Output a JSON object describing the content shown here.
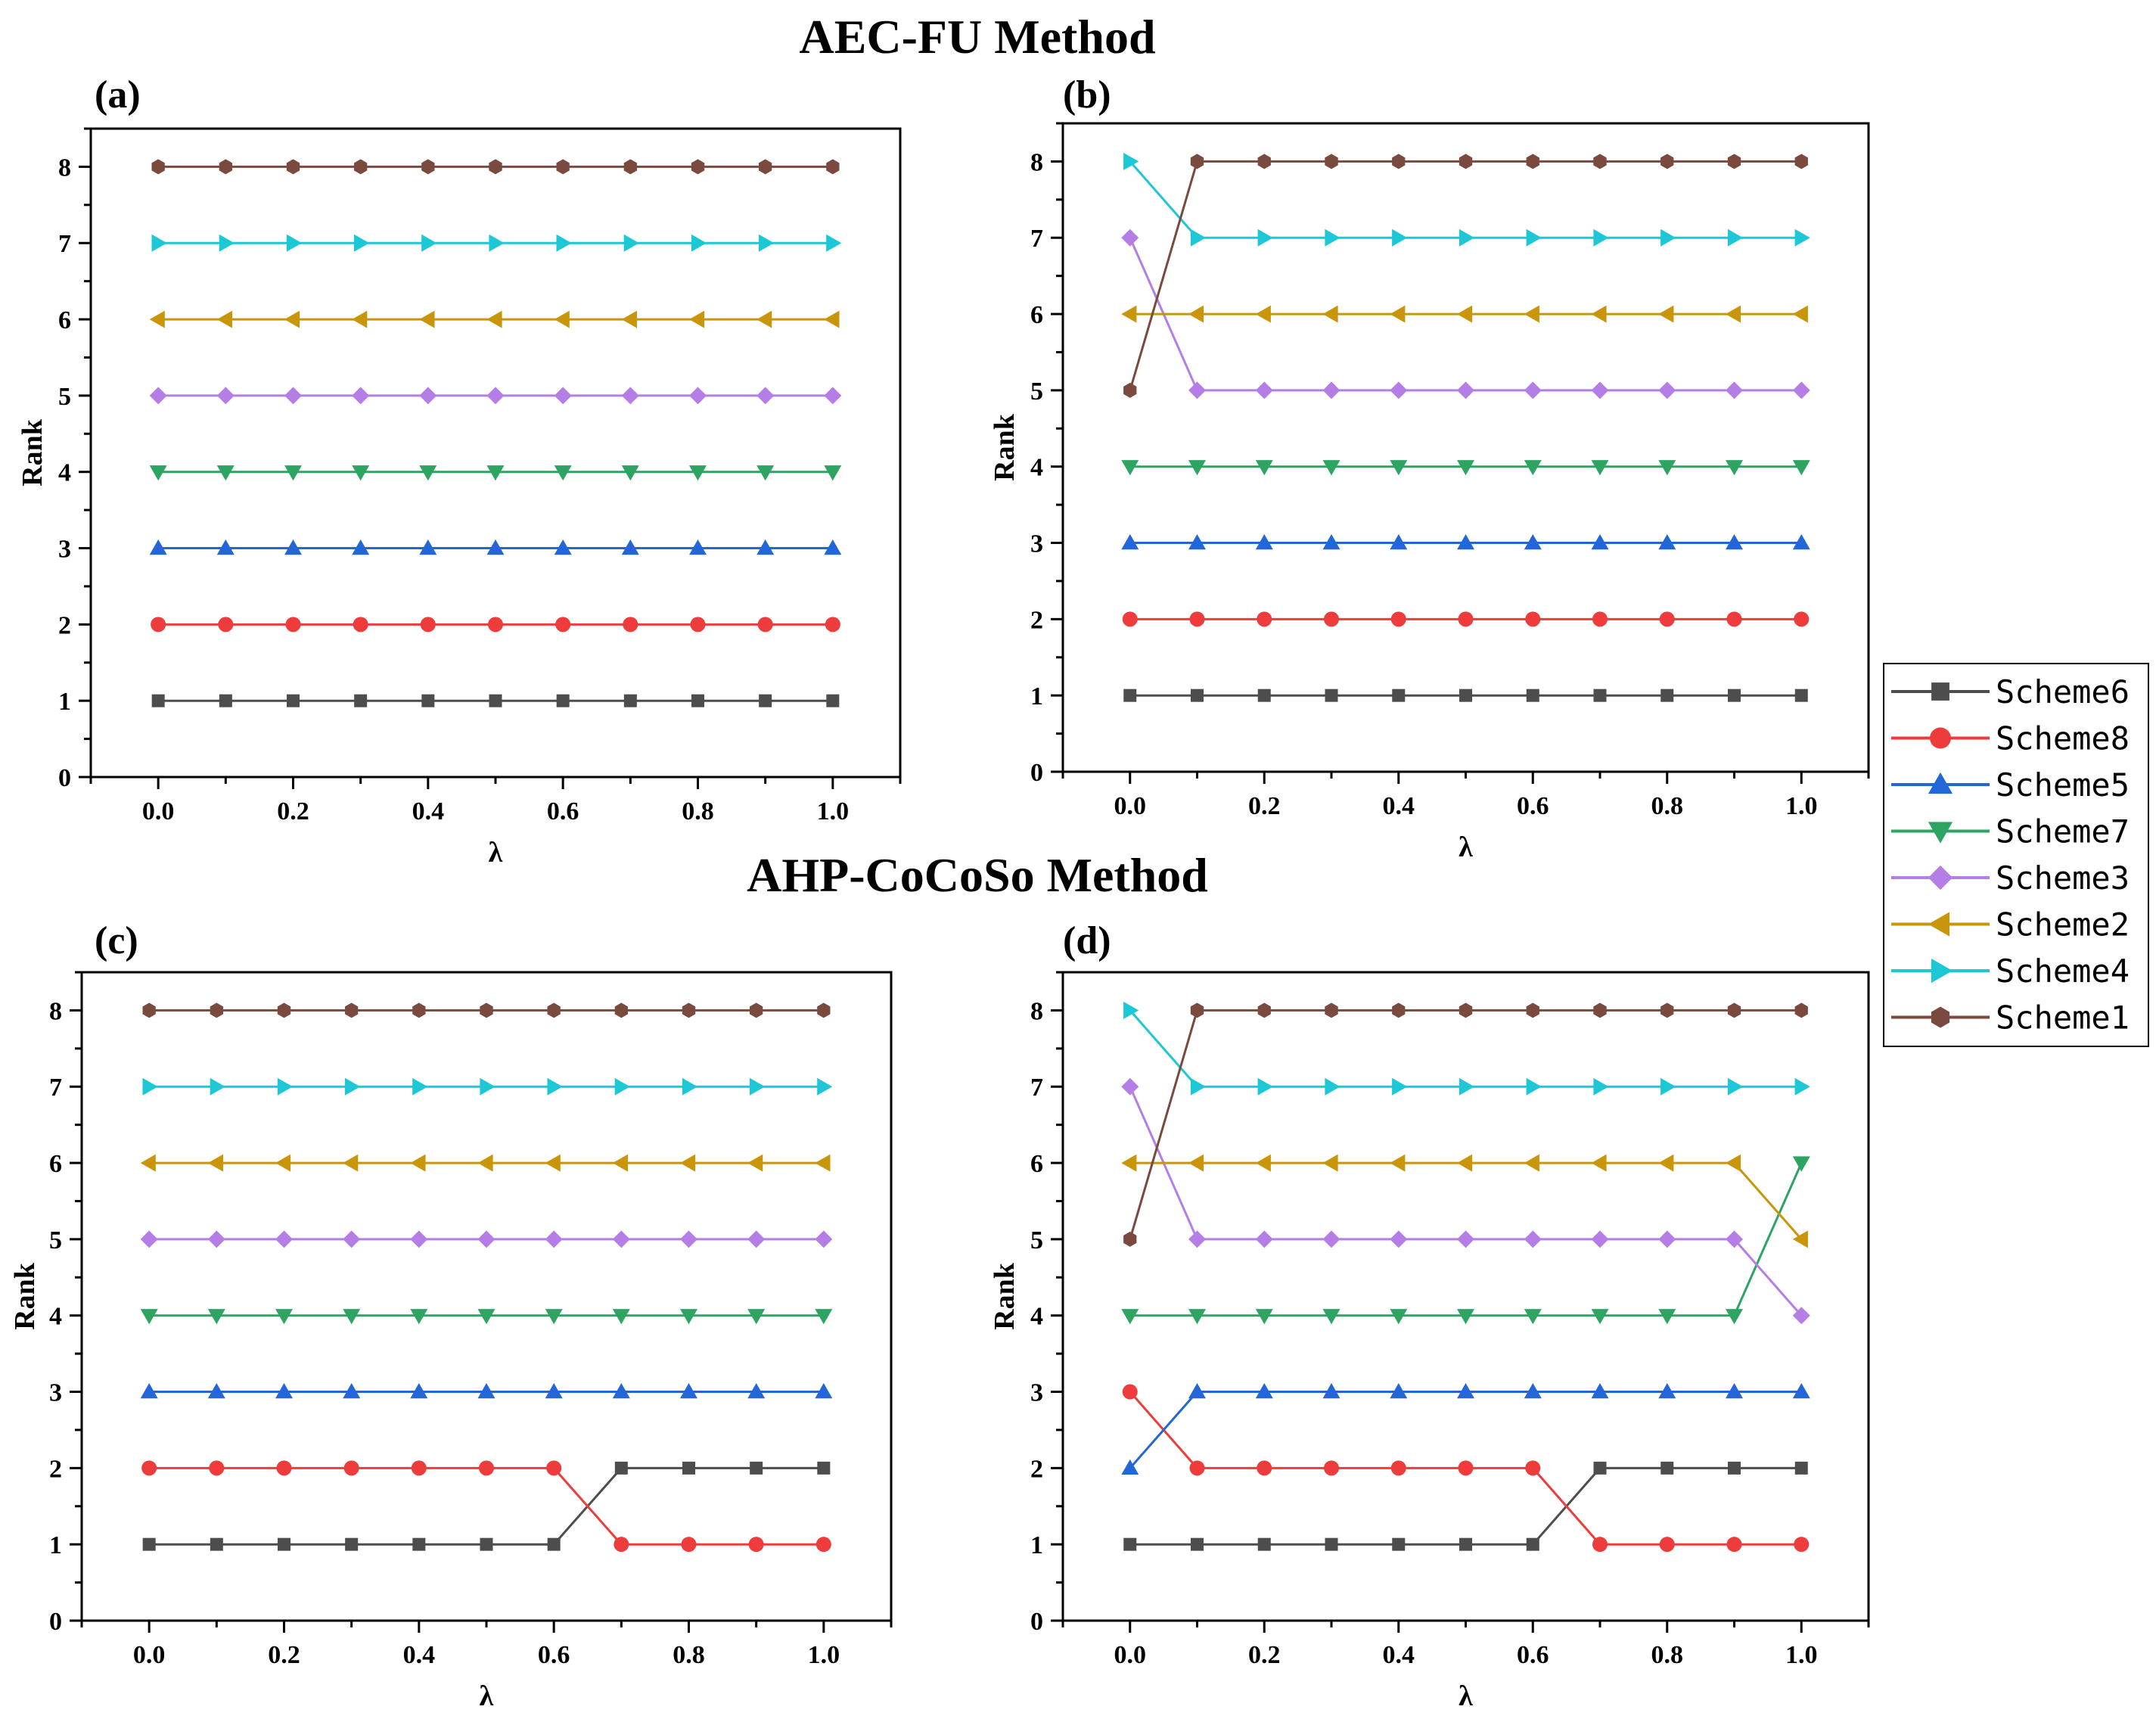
{
  "figure": {
    "top_title": "AEC-FU Method",
    "bottom_title": "AHP-CoCoSo Method"
  },
  "legend": {
    "order": [
      "Scheme6",
      "Scheme8",
      "Scheme5",
      "Scheme7",
      "Scheme3",
      "Scheme2",
      "Scheme4",
      "Scheme1"
    ]
  },
  "series_styles": {
    "Scheme6": {
      "color": "#4d4d4d",
      "marker": "square"
    },
    "Scheme8": {
      "color": "#ee3b3b",
      "marker": "circle"
    },
    "Scheme5": {
      "color": "#2366d8",
      "marker": "triangle-up"
    },
    "Scheme7": {
      "color": "#2ea463",
      "marker": "triangle-down"
    },
    "Scheme3": {
      "color": "#b57ee6",
      "marker": "diamond"
    },
    "Scheme2": {
      "color": "#c9950a",
      "marker": "triangle-left"
    },
    "Scheme4": {
      "color": "#1cc7d6",
      "marker": "triangle-right"
    },
    "Scheme1": {
      "color": "#7b4a3e",
      "marker": "hexagon"
    }
  },
  "chart_data": [
    {
      "type": "line",
      "panel_label": "(a)",
      "xlabel": "λ",
      "ylabel": "Rank",
      "xlim": [
        -0.1,
        1.1
      ],
      "ylim": [
        0,
        8.5
      ],
      "xticks": [
        "0.0",
        "0.2",
        "0.4",
        "0.6",
        "0.8",
        "1.0"
      ],
      "yticks": [
        "0",
        "1",
        "2",
        "3",
        "4",
        "5",
        "6",
        "7",
        "8"
      ],
      "x": [
        0.0,
        0.1,
        0.2,
        0.3,
        0.4,
        0.5,
        0.6,
        0.7,
        0.8,
        0.9,
        1.0
      ],
      "series": [
        {
          "name": "Scheme6",
          "values": [
            1,
            1,
            1,
            1,
            1,
            1,
            1,
            1,
            1,
            1,
            1
          ]
        },
        {
          "name": "Scheme8",
          "values": [
            2,
            2,
            2,
            2,
            2,
            2,
            2,
            2,
            2,
            2,
            2
          ]
        },
        {
          "name": "Scheme5",
          "values": [
            3,
            3,
            3,
            3,
            3,
            3,
            3,
            3,
            3,
            3,
            3
          ]
        },
        {
          "name": "Scheme7",
          "values": [
            4,
            4,
            4,
            4,
            4,
            4,
            4,
            4,
            4,
            4,
            4
          ]
        },
        {
          "name": "Scheme3",
          "values": [
            5,
            5,
            5,
            5,
            5,
            5,
            5,
            5,
            5,
            5,
            5
          ]
        },
        {
          "name": "Scheme2",
          "values": [
            6,
            6,
            6,
            6,
            6,
            6,
            6,
            6,
            6,
            6,
            6
          ]
        },
        {
          "name": "Scheme4",
          "values": [
            7,
            7,
            7,
            7,
            7,
            7,
            7,
            7,
            7,
            7,
            7
          ]
        },
        {
          "name": "Scheme1",
          "values": [
            8,
            8,
            8,
            8,
            8,
            8,
            8,
            8,
            8,
            8,
            8
          ]
        }
      ]
    },
    {
      "type": "line",
      "panel_label": "(b)",
      "xlabel": "λ",
      "ylabel": "Rank",
      "xlim": [
        -0.1,
        1.1
      ],
      "ylim": [
        0,
        8.5
      ],
      "xticks": [
        "0.0",
        "0.2",
        "0.4",
        "0.6",
        "0.8",
        "1.0"
      ],
      "yticks": [
        "0",
        "1",
        "2",
        "3",
        "4",
        "5",
        "6",
        "7",
        "8"
      ],
      "x": [
        0.0,
        0.1,
        0.2,
        0.3,
        0.4,
        0.5,
        0.6,
        0.7,
        0.8,
        0.9,
        1.0
      ],
      "series": [
        {
          "name": "Scheme6",
          "values": [
            1,
            1,
            1,
            1,
            1,
            1,
            1,
            1,
            1,
            1,
            1
          ]
        },
        {
          "name": "Scheme8",
          "values": [
            2,
            2,
            2,
            2,
            2,
            2,
            2,
            2,
            2,
            2,
            2
          ]
        },
        {
          "name": "Scheme5",
          "values": [
            3,
            3,
            3,
            3,
            3,
            3,
            3,
            3,
            3,
            3,
            3
          ]
        },
        {
          "name": "Scheme7",
          "values": [
            4,
            4,
            4,
            4,
            4,
            4,
            4,
            4,
            4,
            4,
            4
          ]
        },
        {
          "name": "Scheme3",
          "values": [
            7,
            5,
            5,
            5,
            5,
            5,
            5,
            5,
            5,
            5,
            5
          ]
        },
        {
          "name": "Scheme2",
          "values": [
            6,
            6,
            6,
            6,
            6,
            6,
            6,
            6,
            6,
            6,
            6
          ]
        },
        {
          "name": "Scheme4",
          "values": [
            8,
            7,
            7,
            7,
            7,
            7,
            7,
            7,
            7,
            7,
            7
          ]
        },
        {
          "name": "Scheme1",
          "values": [
            5,
            8,
            8,
            8,
            8,
            8,
            8,
            8,
            8,
            8,
            8
          ]
        }
      ]
    },
    {
      "type": "line",
      "panel_label": "(c)",
      "xlabel": "λ",
      "ylabel": "Rank",
      "xlim": [
        -0.1,
        1.1
      ],
      "ylim": [
        0,
        8.5
      ],
      "xticks": [
        "0.0",
        "0.2",
        "0.4",
        "0.6",
        "0.8",
        "1.0"
      ],
      "yticks": [
        "0",
        "1",
        "2",
        "3",
        "4",
        "5",
        "6",
        "7",
        "8"
      ],
      "x": [
        0.0,
        0.1,
        0.2,
        0.3,
        0.4,
        0.5,
        0.6,
        0.7,
        0.8,
        0.9,
        1.0
      ],
      "series": [
        {
          "name": "Scheme6",
          "values": [
            1,
            1,
            1,
            1,
            1,
            1,
            1,
            2,
            2,
            2,
            2
          ]
        },
        {
          "name": "Scheme8",
          "values": [
            2,
            2,
            2,
            2,
            2,
            2,
            2,
            1,
            1,
            1,
            1
          ]
        },
        {
          "name": "Scheme5",
          "values": [
            3,
            3,
            3,
            3,
            3,
            3,
            3,
            3,
            3,
            3,
            3
          ]
        },
        {
          "name": "Scheme7",
          "values": [
            4,
            4,
            4,
            4,
            4,
            4,
            4,
            4,
            4,
            4,
            4
          ]
        },
        {
          "name": "Scheme3",
          "values": [
            5,
            5,
            5,
            5,
            5,
            5,
            5,
            5,
            5,
            5,
            5
          ]
        },
        {
          "name": "Scheme2",
          "values": [
            6,
            6,
            6,
            6,
            6,
            6,
            6,
            6,
            6,
            6,
            6
          ]
        },
        {
          "name": "Scheme4",
          "values": [
            7,
            7,
            7,
            7,
            7,
            7,
            7,
            7,
            7,
            7,
            7
          ]
        },
        {
          "name": "Scheme1",
          "values": [
            8,
            8,
            8,
            8,
            8,
            8,
            8,
            8,
            8,
            8,
            8
          ]
        }
      ]
    },
    {
      "type": "line",
      "panel_label": "(d)",
      "xlabel": "λ",
      "ylabel": "Rank",
      "xlim": [
        -0.1,
        1.1
      ],
      "ylim": [
        0,
        8.5
      ],
      "xticks": [
        "0.0",
        "0.2",
        "0.4",
        "0.6",
        "0.8",
        "1.0"
      ],
      "yticks": [
        "0",
        "1",
        "2",
        "3",
        "4",
        "5",
        "6",
        "7",
        "8"
      ],
      "x": [
        0.0,
        0.1,
        0.2,
        0.3,
        0.4,
        0.5,
        0.6,
        0.7,
        0.8,
        0.9,
        1.0
      ],
      "series": [
        {
          "name": "Scheme6",
          "values": [
            1,
            1,
            1,
            1,
            1,
            1,
            1,
            2,
            2,
            2,
            2
          ]
        },
        {
          "name": "Scheme8",
          "values": [
            3,
            2,
            2,
            2,
            2,
            2,
            2,
            1,
            1,
            1,
            1
          ]
        },
        {
          "name": "Scheme5",
          "values": [
            2,
            3,
            3,
            3,
            3,
            3,
            3,
            3,
            3,
            3,
            3
          ]
        },
        {
          "name": "Scheme7",
          "values": [
            4,
            4,
            4,
            4,
            4,
            4,
            4,
            4,
            4,
            4,
            6
          ]
        },
        {
          "name": "Scheme3",
          "values": [
            7,
            5,
            5,
            5,
            5,
            5,
            5,
            5,
            5,
            5,
            4
          ]
        },
        {
          "name": "Scheme2",
          "values": [
            6,
            6,
            6,
            6,
            6,
            6,
            6,
            6,
            6,
            6,
            5
          ]
        },
        {
          "name": "Scheme4",
          "values": [
            8,
            7,
            7,
            7,
            7,
            7,
            7,
            7,
            7,
            7,
            7
          ]
        },
        {
          "name": "Scheme1",
          "values": [
            5,
            8,
            8,
            8,
            8,
            8,
            8,
            8,
            8,
            8,
            8
          ]
        }
      ]
    }
  ]
}
